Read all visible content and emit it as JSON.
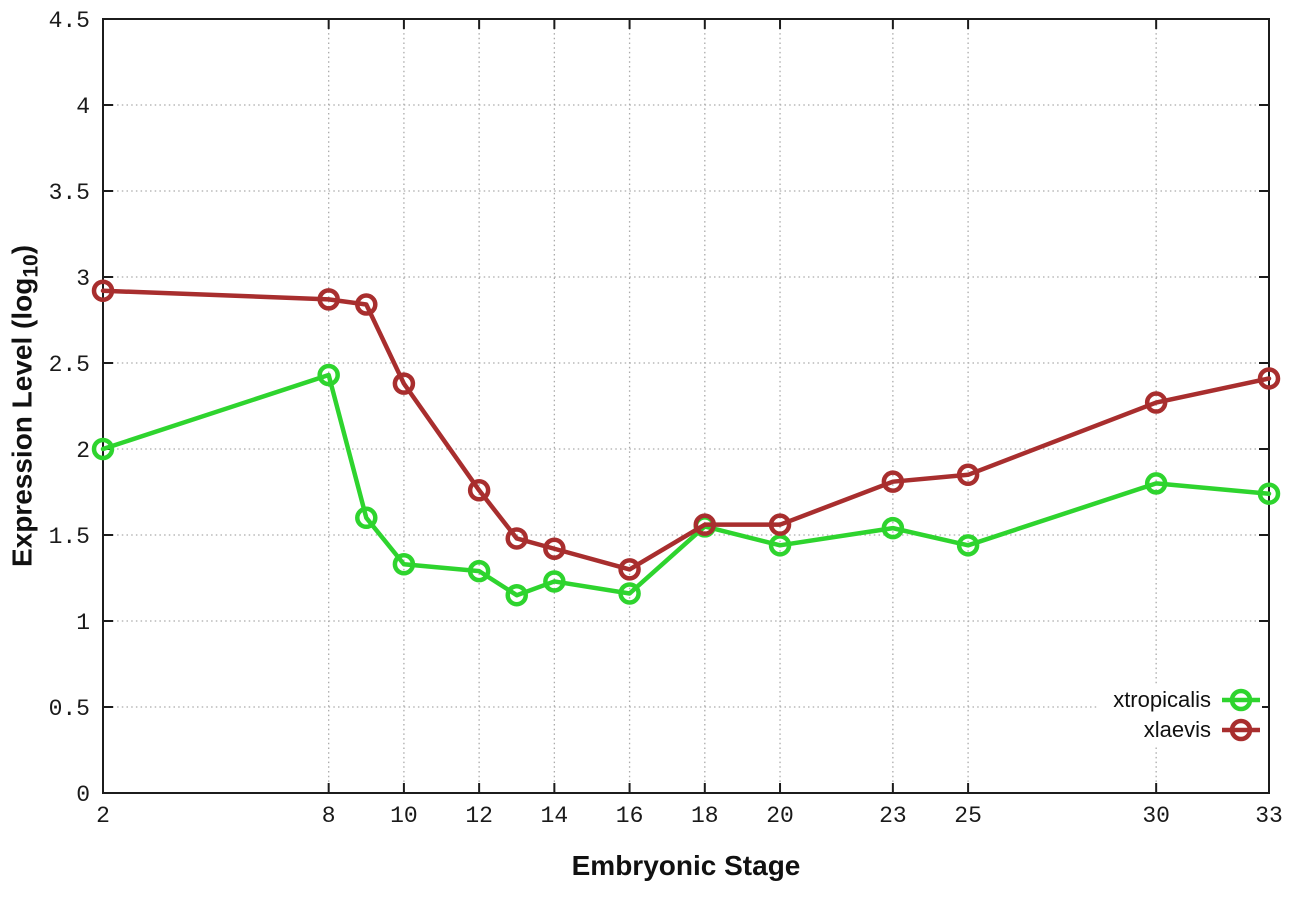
{
  "chart_data": {
    "type": "line",
    "title": "",
    "xlabel": "Embryonic Stage",
    "ylabel": "Expression Level (log10)",
    "ylabel_parts": {
      "prefix": "Expression Level (log",
      "sub": "10",
      "suffix": ")"
    },
    "x": [
      2,
      8,
      9,
      10,
      12,
      13,
      14,
      16,
      18,
      20,
      23,
      25,
      30,
      33
    ],
    "series": [
      {
        "name": "xtropicalis",
        "color": "#2ed42e",
        "values": [
          2.0,
          2.43,
          1.6,
          1.33,
          1.29,
          1.15,
          1.23,
          1.16,
          1.55,
          1.44,
          1.54,
          1.44,
          1.8,
          1.74
        ]
      },
      {
        "name": "xlaevis",
        "color": "#a82e2e",
        "values": [
          2.92,
          2.87,
          2.84,
          2.38,
          1.76,
          1.48,
          1.42,
          1.3,
          1.56,
          1.56,
          1.81,
          1.85,
          2.27,
          2.41
        ]
      }
    ],
    "x_ticks": [
      2,
      8,
      10,
      12,
      14,
      16,
      18,
      20,
      23,
      25,
      30,
      33
    ],
    "y_ticks": [
      0,
      0.5,
      1,
      1.5,
      2,
      2.5,
      3,
      3.5,
      4,
      4.5
    ],
    "xlim": [
      2,
      33
    ],
    "ylim": [
      0,
      4.5
    ],
    "grid": true,
    "legend_position": "inside-bottom-right",
    "axis_color": "#1c1c1c",
    "grid_color": "#aaaaaa",
    "tick_text_color": "#1a1a1a",
    "marker": "open-circle"
  }
}
